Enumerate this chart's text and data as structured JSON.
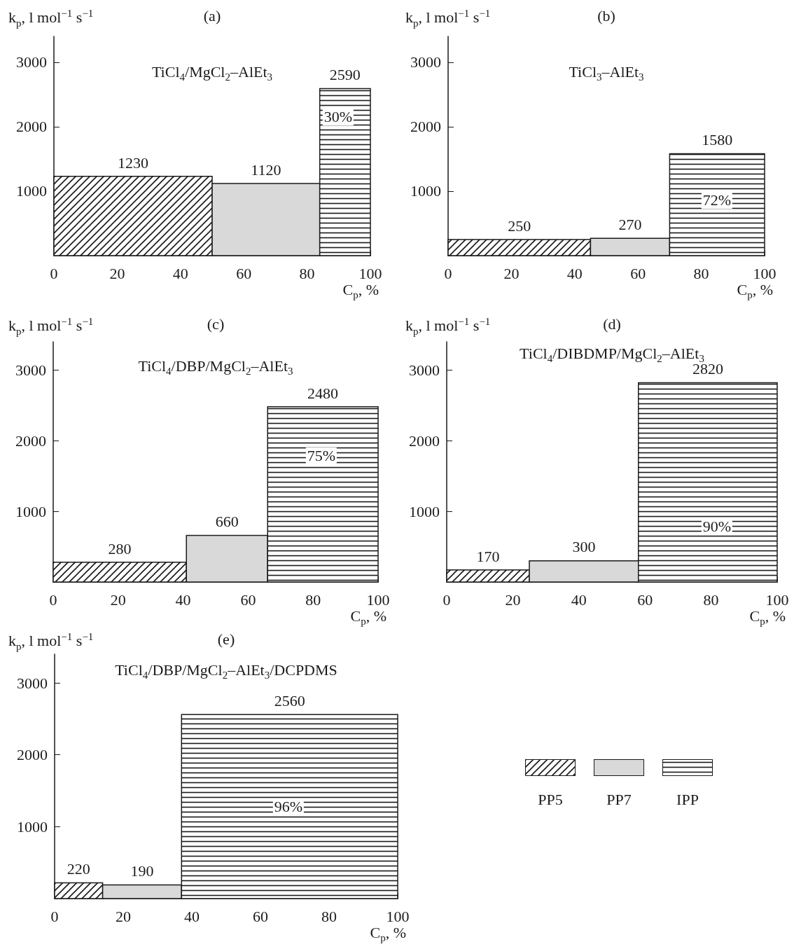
{
  "chart_data": [
    {
      "type": "histogram",
      "title": "(a)",
      "subtitle": "TiCl$_{4}$/MgCl$_{2}$–AlEt$_{3}$",
      "xlabel": "C$_{p}$, %",
      "ylabel": "k$_{p}$, l mol$^{−1}$ s$^{−1}$",
      "xlim": [
        0,
        100
      ],
      "xticks": [
        0,
        20,
        40,
        60,
        80,
        100
      ],
      "ylim": [
        0,
        3400
      ],
      "yticks": [
        1000,
        2000,
        3000
      ],
      "data_labels": true,
      "bins": [
        0,
        50,
        84,
        100
      ],
      "values": [
        1230,
        1120,
        2590
      ],
      "colors": [
        "#1a1a1a",
        "#d9d9d9",
        "#1a1a1a"
      ],
      "annotations": [
        "30%"
      ]
    },
    {
      "type": "histogram",
      "title": "(b)",
      "subtitle": "TiCl$_{3}$–AlEt$_{3}$",
      "xlabel": "C$_{p}$, %",
      "ylabel": "k$_{p}$, l mol$^{−1}$ s$^{−1}$",
      "xlim": [
        0,
        100
      ],
      "xticks": [
        0,
        20,
        40,
        60,
        80,
        100
      ],
      "ylim": [
        0,
        3400
      ],
      "yticks": [
        1000,
        2000,
        3000
      ],
      "data_labels": true,
      "bins": [
        0,
        45,
        70,
        100
      ],
      "values": [
        250,
        270,
        1580
      ],
      "colors": [
        "#1a1a1a",
        "#d9d9d9",
        "#1a1a1a"
      ],
      "annotations": [
        "72%"
      ]
    },
    {
      "type": "histogram",
      "title": "(c)",
      "subtitle": "TiCl$_{4}$/DBP/MgCl$_{2}$–AlEt$_{3}$",
      "xlabel": "C$_{p}$, %",
      "ylabel": "k$_{p}$, l mol$^{−1}$ s$^{−1}$",
      "xlim": [
        0,
        100
      ],
      "xticks": [
        0,
        20,
        40,
        60,
        80,
        100
      ],
      "ylim": [
        0,
        3400
      ],
      "yticks": [
        1000,
        2000,
        3000
      ],
      "data_labels": true,
      "bins": [
        0,
        41,
        66,
        100
      ],
      "values": [
        280,
        660,
        2480
      ],
      "colors": [
        "#1a1a1a",
        "#d9d9d9",
        "#1a1a1a"
      ],
      "annotations": [
        "75%"
      ]
    },
    {
      "type": "histogram",
      "title": "(d)",
      "subtitle": "TiCl$_{4}$/DIBDMP/MgCl$_{2}$–AlEt$_{3}$",
      "xlabel": "C$_{p}$, %",
      "ylabel": "k$_{p}$, l mol$^{−1}$ s$^{−1}$",
      "xlim": [
        0,
        100
      ],
      "xticks": [
        0,
        20,
        40,
        60,
        80,
        100
      ],
      "ylim": [
        0,
        3400
      ],
      "yticks": [
        1000,
        2000,
        3000
      ],
      "data_labels": true,
      "bins": [
        0,
        25,
        58,
        100
      ],
      "values": [
        170,
        300,
        2820
      ],
      "colors": [
        "#1a1a1a",
        "#d9d9d9",
        "#1a1a1a"
      ],
      "annotations": [
        "90%"
      ]
    },
    {
      "type": "histogram",
      "title": "(e)",
      "subtitle": "TiCl$_{4}$/DBP/MgCl$_{2}$–AlEt$_{3}$/DCPDMS",
      "xlabel": "C$_{p}$, %",
      "ylabel": "k$_{p}$, l mol$^{−1}$ s$^{−1}$",
      "xlim": [
        0,
        100
      ],
      "xticks": [
        0,
        20,
        40,
        60,
        80,
        100
      ],
      "ylim": [
        0,
        3400
      ],
      "yticks": [
        1000,
        2000,
        3000
      ],
      "data_labels": true,
      "bins": [
        0,
        14,
        37,
        100
      ],
      "values": [
        220,
        190,
        2560
      ],
      "colors": [
        "#1a1a1a",
        "#d9d9d9",
        "#1a1a1a"
      ],
      "annotations": [
        "96%",
        "PP5",
        "PP7",
        "IPP"
      ]
    }
  ]
}
